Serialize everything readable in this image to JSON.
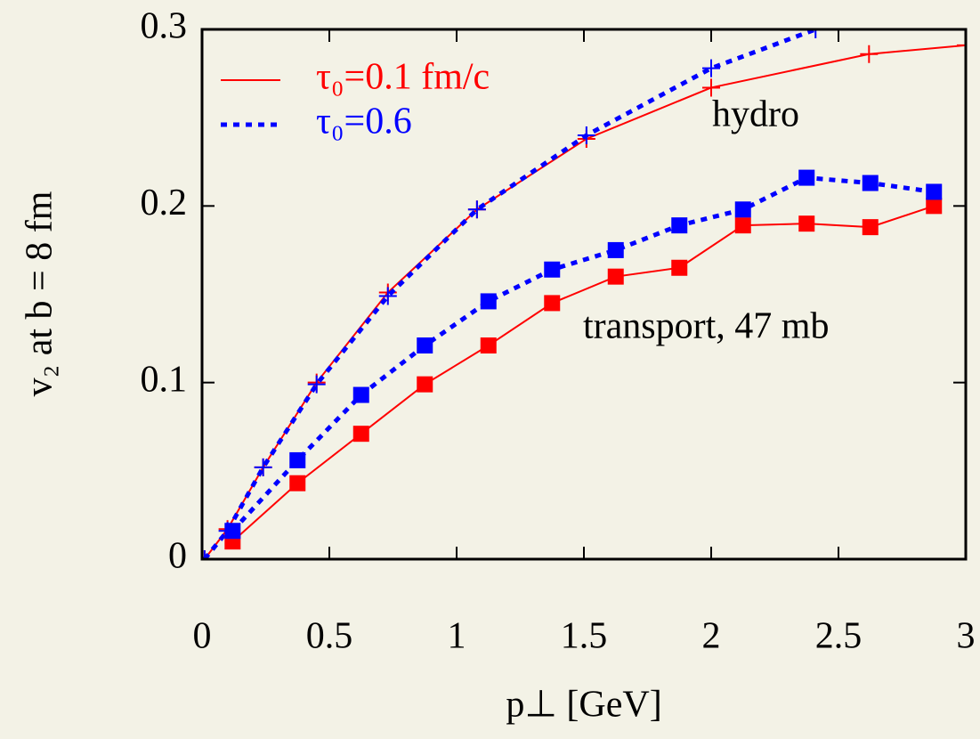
{
  "chart_data": {
    "type": "line",
    "xlabel": "p⊥ [GeV]",
    "ylabel": "v₂ at b = 8 fm",
    "annotations": [
      "hydro",
      "transport, 47 mb"
    ],
    "xlim": [
      0,
      3
    ],
    "ylim": [
      0,
      0.3
    ],
    "xticks": [
      0,
      0.5,
      1,
      1.5,
      2,
      2.5,
      3
    ],
    "yticks": [
      0,
      0.1,
      0.2,
      0.3
    ],
    "legend": "upper left",
    "series": [
      {
        "name": "τ₀=0.1 fm/c",
        "color": "#ff0000",
        "dash": false,
        "marker": "plus",
        "x": [
          0.01,
          0.1,
          0.24,
          0.45,
          0.73,
          1.08,
          1.51,
          2.0,
          2.62,
          3.0
        ],
        "values": [
          0,
          0.017,
          0.052,
          0.1,
          0.151,
          0.198,
          0.238,
          0.267,
          0.286,
          0.291
        ]
      },
      {
        "name": "τ₀=0.6",
        "color": "#0000ff",
        "dash": true,
        "marker": "plus",
        "x": [
          0.01,
          0.1,
          0.24,
          0.45,
          0.73,
          1.08,
          1.51,
          2.0,
          2.41
        ],
        "values": [
          0,
          0.016,
          0.052,
          0.099,
          0.149,
          0.198,
          0.24,
          0.278,
          0.3
        ]
      },
      {
        "color": "#ff0000",
        "dash": false,
        "marker": "square",
        "x": [
          0.12,
          0.375,
          0.625,
          0.875,
          1.125,
          1.375,
          1.625,
          1.875,
          2.125,
          2.375,
          2.625,
          2.875
        ],
        "values": [
          0.01,
          0.043,
          0.071,
          0.099,
          0.121,
          0.145,
          0.16,
          0.165,
          0.189,
          0.19,
          0.188,
          0.2
        ]
      },
      {
        "color": "#0000ff",
        "dash": true,
        "marker": "square",
        "x": [
          0.12,
          0.375,
          0.625,
          0.875,
          1.125,
          1.375,
          1.625,
          1.875,
          2.125,
          2.375,
          2.625,
          2.875
        ],
        "values": [
          0.016,
          0.056,
          0.093,
          0.121,
          0.146,
          0.164,
          0.175,
          0.189,
          0.198,
          0.216,
          0.213,
          0.208
        ]
      }
    ]
  }
}
